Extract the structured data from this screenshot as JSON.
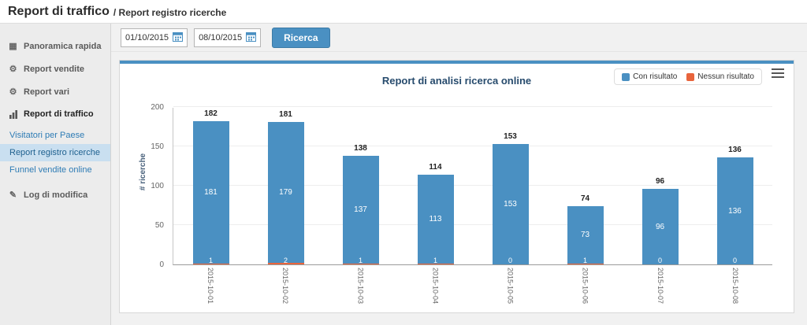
{
  "header": {
    "title": "Report di traffico",
    "breadcrumb": "/ Report registro ricerche"
  },
  "sidebar": {
    "items": [
      {
        "label": "Panoramica rapida",
        "icon": "dashboard-icon"
      },
      {
        "label": "Report vendite",
        "icon": "gear-icon"
      },
      {
        "label": "Report vari",
        "icon": "gear-icon"
      },
      {
        "label": "Report di traffico",
        "icon": "traffic-bars-icon",
        "active": true
      },
      {
        "label": "Log di modifica",
        "icon": "pencil-icon"
      }
    ],
    "traffic_subitems": [
      {
        "label": "Visitatori per Paese",
        "active": false
      },
      {
        "label": "Report registro ricerche",
        "active": true
      },
      {
        "label": "Funnel vendite online",
        "active": false
      }
    ]
  },
  "toolbar": {
    "date_from": "01/10/2015",
    "date_to": "08/10/2015",
    "search_button": "Ricerca"
  },
  "colors": {
    "accent": "#4a90c2",
    "bar_with_result": "#4a90c2",
    "bar_no_result": "#e8643c",
    "active_subitem_bg": "#c9dff0"
  },
  "chart_data": {
    "type": "bar",
    "stacked": true,
    "title": "Report di analisi ricerca online",
    "ylabel": "# ricerche",
    "xlabel": "",
    "ylim": [
      0,
      200
    ],
    "yticks": [
      0,
      50,
      100,
      150,
      200
    ],
    "grid": true,
    "legend_position": "top-right",
    "categories": [
      "2015-10-01",
      "2015-10-02",
      "2015-10-03",
      "2015-10-04",
      "2015-10-05",
      "2015-10-06",
      "2015-10-07",
      "2015-10-08"
    ],
    "series": [
      {
        "name": "Con risultato",
        "color": "#4a90c2",
        "values": [
          181,
          179,
          137,
          113,
          153,
          73,
          96,
          136
        ]
      },
      {
        "name": "Nessun risultato",
        "color": "#e8643c",
        "values": [
          1,
          2,
          1,
          1,
          0,
          1,
          0,
          0
        ]
      }
    ],
    "totals": [
      182,
      181,
      138,
      114,
      153,
      74,
      96,
      136
    ]
  }
}
